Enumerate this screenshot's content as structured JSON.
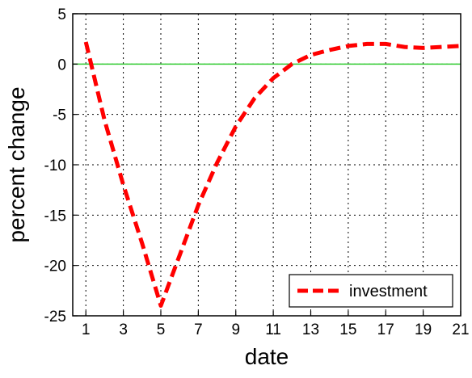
{
  "chart_data": {
    "type": "line",
    "title": "",
    "xlabel": "date",
    "ylabel": "percent change",
    "xlim": [
      0.3,
      21
    ],
    "ylim": [
      -25,
      5
    ],
    "xticks": [
      1,
      3,
      5,
      7,
      9,
      11,
      13,
      15,
      17,
      19,
      21
    ],
    "yticks": [
      5,
      0,
      -5,
      -10,
      -15,
      -20,
      -25
    ],
    "grid": true,
    "legend_position": "bottom-right",
    "reference_line": {
      "y": 0,
      "color": "#33cc33"
    },
    "series": [
      {
        "name": "investment",
        "color": "#ff0000",
        "style": "dashed",
        "x": [
          1,
          2,
          3,
          4,
          5,
          6,
          7,
          8,
          9,
          10,
          11,
          12,
          13,
          14,
          15,
          16,
          17,
          18,
          19,
          20,
          21
        ],
        "y": [
          2.2,
          -5.6,
          -12.0,
          -17.8,
          -24.0,
          -19.0,
          -14.0,
          -9.8,
          -6.2,
          -3.4,
          -1.4,
          0.0,
          0.9,
          1.4,
          1.8,
          2.0,
          2.0,
          1.7,
          1.6,
          1.7,
          1.8
        ]
      }
    ]
  }
}
